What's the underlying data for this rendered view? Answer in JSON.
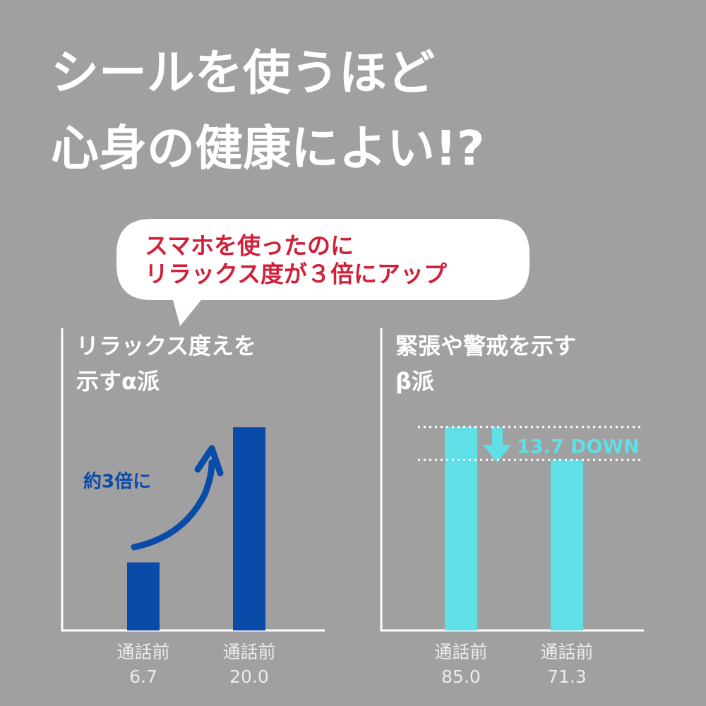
{
  "header": {
    "lines": [
      "シールを使うほど",
      "心身の健康によい!?"
    ]
  },
  "callout": {
    "lines": [
      "スマホを使ったのに",
      "リラックス度が３倍にアップ"
    ]
  },
  "chart_data": [
    {
      "type": "bar",
      "title": [
        "リラックス度えを",
        "示すα派"
      ],
      "categories": [
        "通話前",
        "通話前"
      ],
      "values": [
        6.7,
        20.0
      ],
      "value_labels": [
        "6.7",
        "20.0"
      ],
      "color": "#0a4aa8",
      "ylim": [
        0,
        20.5
      ],
      "annotation": "約3倍に"
    },
    {
      "type": "bar",
      "title": [
        "緊張や警戒を示す",
        "β派"
      ],
      "categories": [
        "通話前",
        "通話前"
      ],
      "values": [
        85.0,
        71.3
      ],
      "value_labels": [
        "85.0",
        "71.3"
      ],
      "color": "#5ee0e6",
      "ylim": [
        0,
        87
      ],
      "annotation": "13.7 DOWN"
    }
  ]
}
